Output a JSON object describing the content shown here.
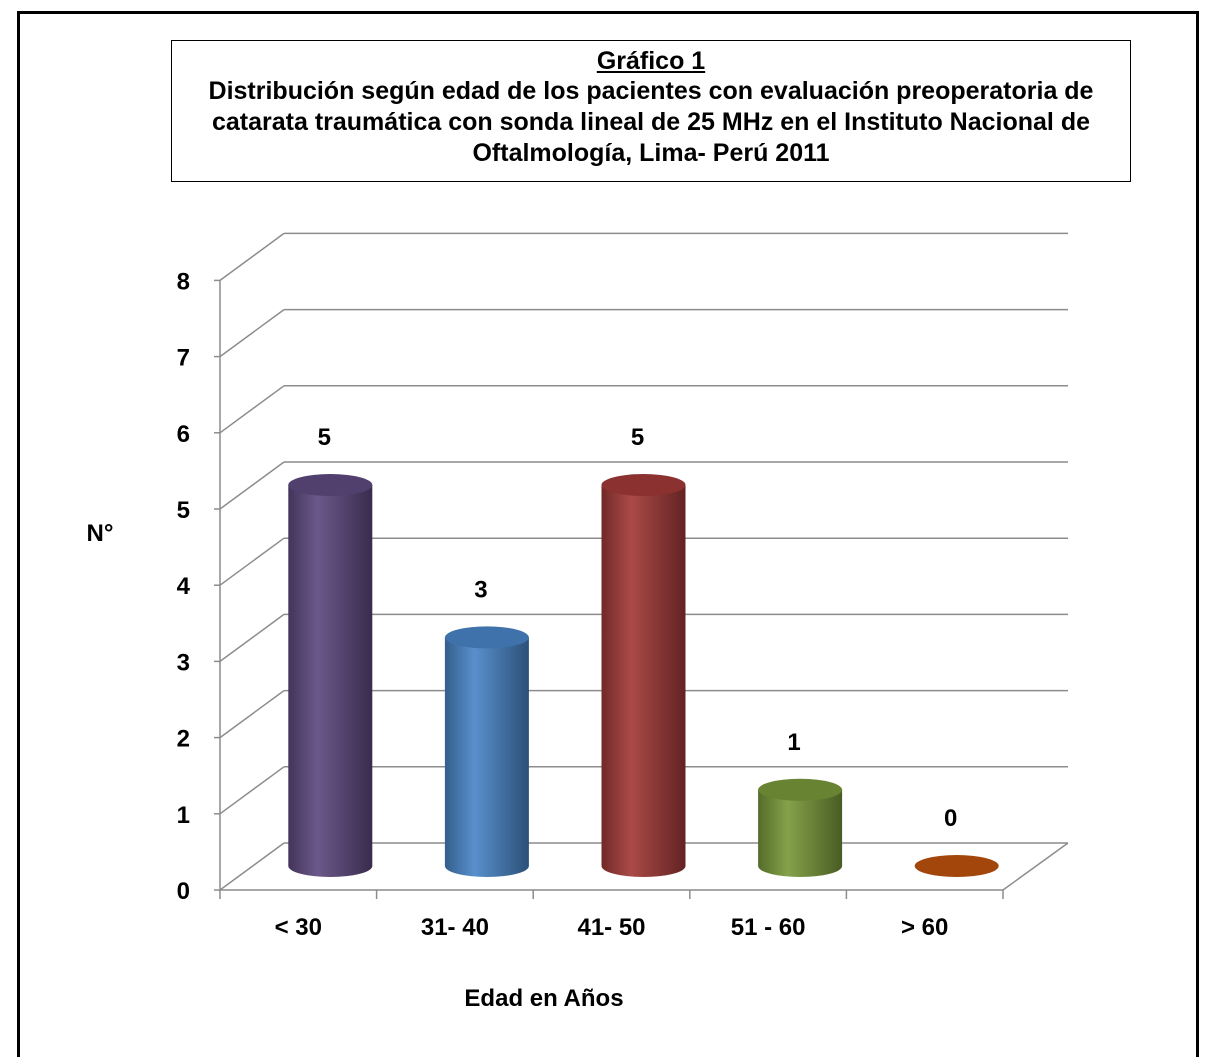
{
  "chart_data": {
    "type": "bar",
    "title": "Gráfico 1",
    "subtitle": "Distribución según edad de los pacientes con evaluación preoperatoria de catarata traumática con sonda lineal de 25 MHz en el Instituto Nacional de Oftalmología, Lima- Perú 2011",
    "xlabel": "Edad en Años",
    "ylabel": "N°",
    "categories": [
      "< 30",
      "31- 40",
      "41- 50",
      "51 - 60",
      "> 60"
    ],
    "values": [
      5,
      3,
      5,
      1,
      0
    ],
    "data_labels": [
      "5",
      "3",
      "5",
      "1",
      "0"
    ],
    "yticks": [
      "0",
      "1",
      "2",
      "3",
      "4",
      "5",
      "6",
      "7",
      "8"
    ],
    "ylim": [
      0,
      8
    ],
    "grid": true,
    "legend": "none",
    "style": "3d-cylinder",
    "colors": [
      "#5f4a80",
      "#4a86c8",
      "#a33a38",
      "#7a9a3a",
      "#c0520e"
    ]
  }
}
